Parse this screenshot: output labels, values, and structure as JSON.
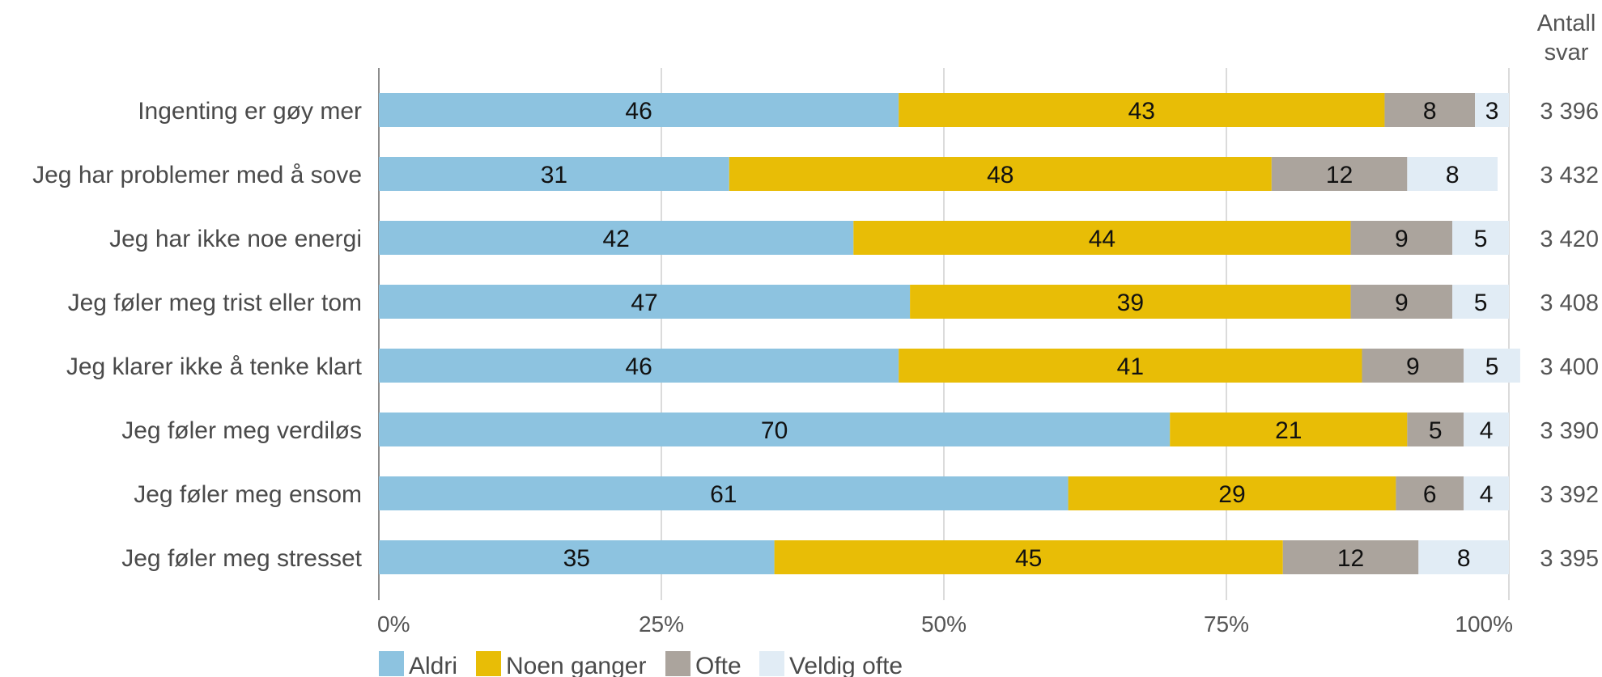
{
  "chart_data": {
    "type": "bar",
    "orientation": "horizontal",
    "stacked": true,
    "categories": [
      "Ingenting er gøy mer",
      "Jeg har problemer med å sove",
      "Jeg har ikke noe energi",
      "Jeg føler meg trist eller tom",
      "Jeg klarer ikke å tenke klart",
      "Jeg føler meg verdiløs",
      "Jeg føler meg ensom",
      "Jeg føler meg stresset"
    ],
    "series": [
      {
        "name": "Aldri",
        "color": "#8dc3e0",
        "values": [
          46,
          31,
          42,
          47,
          46,
          70,
          61,
          35
        ]
      },
      {
        "name": "Noen ganger",
        "color": "#e8bd06",
        "values": [
          43,
          48,
          44,
          39,
          41,
          21,
          29,
          45
        ]
      },
      {
        "name": "Ofte",
        "color": "#aba49d",
        "values": [
          8,
          12,
          9,
          9,
          9,
          5,
          6,
          12
        ]
      },
      {
        "name": "Veldig ofte",
        "color": "#e1ecf5",
        "values": [
          3,
          8,
          5,
          5,
          5,
          4,
          4,
          8
        ]
      }
    ],
    "count_header": [
      "Antall",
      "svar"
    ],
    "counts": [
      "3 396",
      "3 432",
      "3 420",
      "3 408",
      "3 400",
      "3 390",
      "3 392",
      "3 395"
    ],
    "x_ticks": [
      "0%",
      "25%",
      "50%",
      "75%",
      "100%"
    ],
    "xlim": [
      0,
      100
    ],
    "grid": true,
    "legend_position": "bottom-left",
    "title": "",
    "xlabel": "",
    "ylabel": ""
  }
}
